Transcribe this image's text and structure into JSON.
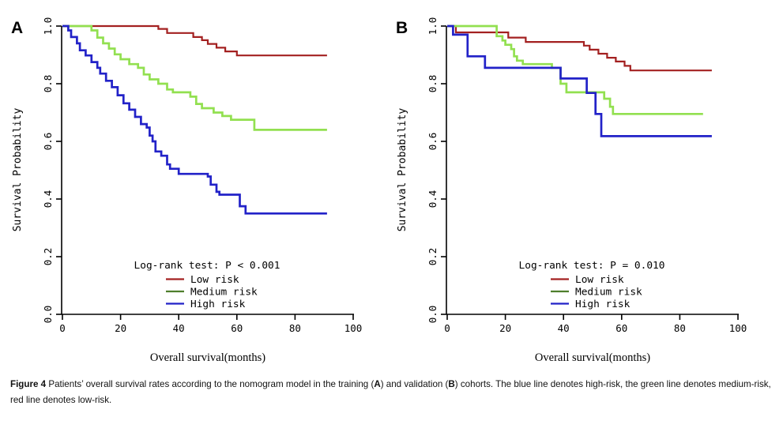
{
  "figure": {
    "caption": {
      "seg1_bold": "Figure 4",
      "seg2": " Patients’ overall survival rates according to the nomogram model in the training (",
      "seg3_bold": "A",
      "seg4": ") and validation (",
      "seg5_bold": "B",
      "seg6": ") cohorts. The blue line denotes high-risk, the green line denotes medium-risk, red line denotes low-risk."
    },
    "colors": {
      "low_risk_line": "#a32020",
      "medium_risk_line": "#92e050",
      "high_risk_line": "#2222c8",
      "legend_medium_swatch": "#4e7e2c",
      "axis": "#000000"
    }
  },
  "chart_data": [
    {
      "type": "line",
      "subtype": "kaplan-meier-step",
      "panel_letter": "A",
      "xlabel": "Overall survival(months)",
      "ylabel": "Survival Probability",
      "xlim": [
        0,
        100
      ],
      "ylim": [
        0.0,
        1.0
      ],
      "xticks": [
        "0",
        "20",
        "40",
        "60",
        "80",
        "100"
      ],
      "yticks": [
        "0.0",
        "0.2",
        "0.4",
        "0.6",
        "0.8",
        "1.0"
      ],
      "grid": "off",
      "legend_position": "bottom-center-inside",
      "annotation": "Log-rank test: P < 0.001",
      "legend": [
        {
          "label": "Low risk",
          "swatch_color": "#a32020"
        },
        {
          "label": "Medium risk",
          "swatch_color": "#4e7e2c"
        },
        {
          "label": "High risk",
          "swatch_color": "#2222c8"
        }
      ],
      "series": [
        {
          "name": "Low risk",
          "color": "#a32020",
          "width": 2.2,
          "step_points": [
            [
              0,
              1.0
            ],
            [
              33,
              0.99
            ],
            [
              36,
              0.976
            ],
            [
              45,
              0.962
            ],
            [
              48,
              0.951
            ],
            [
              50,
              0.938
            ],
            [
              53,
              0.925
            ],
            [
              56,
              0.912
            ],
            [
              60,
              0.898
            ],
            [
              91,
              0.898
            ]
          ]
        },
        {
          "name": "Medium risk",
          "color": "#92e050",
          "width": 2.7,
          "step_points": [
            [
              0,
              1.0
            ],
            [
              10,
              0.985
            ],
            [
              12,
              0.96
            ],
            [
              14,
              0.94
            ],
            [
              16,
              0.922
            ],
            [
              18,
              0.902
            ],
            [
              20,
              0.885
            ],
            [
              23,
              0.868
            ],
            [
              26,
              0.855
            ],
            [
              28,
              0.832
            ],
            [
              30,
              0.815
            ],
            [
              33,
              0.8
            ],
            [
              36,
              0.78
            ],
            [
              38,
              0.77
            ],
            [
              44,
              0.755
            ],
            [
              46,
              0.73
            ],
            [
              48,
              0.715
            ],
            [
              52,
              0.7
            ],
            [
              55,
              0.688
            ],
            [
              58,
              0.675
            ],
            [
              66,
              0.64
            ],
            [
              91,
              0.64
            ]
          ]
        },
        {
          "name": "High risk",
          "color": "#2222c8",
          "width": 2.7,
          "step_points": [
            [
              0,
              1.0
            ],
            [
              2,
              0.985
            ],
            [
              3,
              0.962
            ],
            [
              5,
              0.94
            ],
            [
              6,
              0.916
            ],
            [
              8,
              0.898
            ],
            [
              10,
              0.875
            ],
            [
              12,
              0.855
            ],
            [
              13,
              0.835
            ],
            [
              15,
              0.81
            ],
            [
              17,
              0.788
            ],
            [
              19,
              0.76
            ],
            [
              21,
              0.732
            ],
            [
              23,
              0.71
            ],
            [
              25,
              0.685
            ],
            [
              27,
              0.66
            ],
            [
              29,
              0.648
            ],
            [
              30,
              0.62
            ],
            [
              31,
              0.6
            ],
            [
              32,
              0.565
            ],
            [
              34,
              0.55
            ],
            [
              36,
              0.52
            ],
            [
              37,
              0.505
            ],
            [
              40,
              0.487
            ],
            [
              50,
              0.478
            ],
            [
              51,
              0.45
            ],
            [
              53,
              0.425
            ],
            [
              54,
              0.415
            ],
            [
              61,
              0.375
            ],
            [
              63,
              0.35
            ],
            [
              91,
              0.35
            ]
          ]
        }
      ]
    },
    {
      "type": "line",
      "subtype": "kaplan-meier-step",
      "panel_letter": "B",
      "xlabel": "Overall survival(months)",
      "ylabel": "Survival Probability",
      "xlim": [
        0,
        100
      ],
      "ylim": [
        0.0,
        1.0
      ],
      "xticks": [
        "0",
        "20",
        "40",
        "60",
        "80",
        "100"
      ],
      "yticks": [
        "0.0",
        "0.2",
        "0.4",
        "0.6",
        "0.8",
        "1.0"
      ],
      "grid": "off",
      "legend_position": "bottom-center-inside",
      "annotation": "Log-rank test: P = 0.010",
      "legend": [
        {
          "label": "Low risk",
          "swatch_color": "#a32020"
        },
        {
          "label": "Medium risk",
          "swatch_color": "#4e7e2c"
        },
        {
          "label": "High risk",
          "swatch_color": "#2222c8"
        }
      ],
      "series": [
        {
          "name": "Low risk",
          "color": "#a32020",
          "width": 2.2,
          "step_points": [
            [
              0,
              1.0
            ],
            [
              3,
              0.978
            ],
            [
              21,
              0.96
            ],
            [
              27,
              0.945
            ],
            [
              47,
              0.932
            ],
            [
              49,
              0.918
            ],
            [
              52,
              0.904
            ],
            [
              55,
              0.89
            ],
            [
              58,
              0.877
            ],
            [
              61,
              0.862
            ],
            [
              63,
              0.846
            ],
            [
              91,
              0.846
            ]
          ]
        },
        {
          "name": "Medium risk",
          "color": "#92e050",
          "width": 2.7,
          "step_points": [
            [
              0,
              1.0
            ],
            [
              17,
              0.965
            ],
            [
              19,
              0.95
            ],
            [
              20,
              0.935
            ],
            [
              22,
              0.92
            ],
            [
              23,
              0.895
            ],
            [
              24,
              0.88
            ],
            [
              26,
              0.868
            ],
            [
              36,
              0.855
            ],
            [
              39,
              0.8
            ],
            [
              41,
              0.77
            ],
            [
              54,
              0.748
            ],
            [
              56,
              0.72
            ],
            [
              57,
              0.695
            ],
            [
              88,
              0.695
            ]
          ]
        },
        {
          "name": "High risk",
          "color": "#2222c8",
          "width": 2.7,
          "step_points": [
            [
              0,
              1.0
            ],
            [
              2,
              0.97
            ],
            [
              7,
              0.895
            ],
            [
              13,
              0.855
            ],
            [
              39,
              0.818
            ],
            [
              48,
              0.768
            ],
            [
              51,
              0.695
            ],
            [
              53,
              0.618
            ],
            [
              91,
              0.618
            ]
          ]
        }
      ]
    }
  ]
}
